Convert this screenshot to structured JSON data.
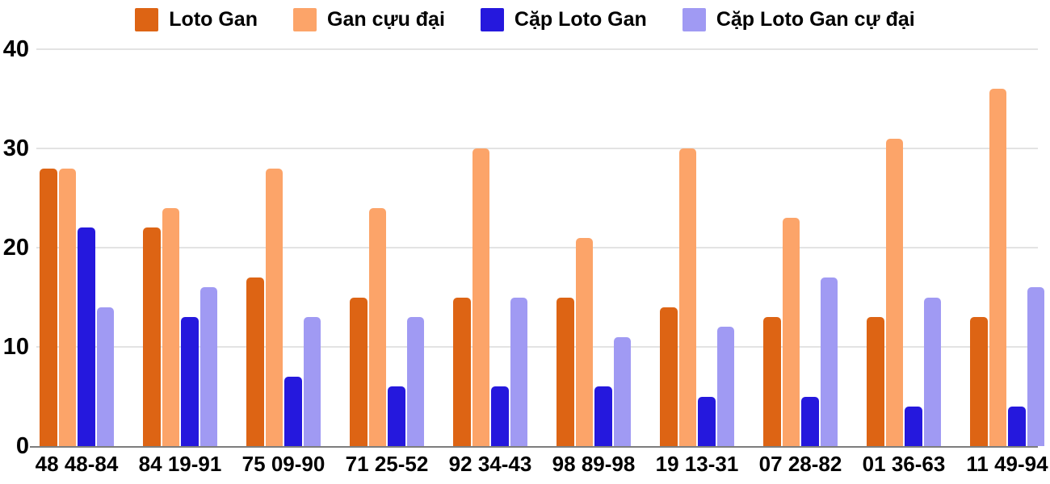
{
  "chart_data": {
    "type": "bar",
    "title": "",
    "xlabel": "",
    "ylabel": "",
    "ylim": [
      0,
      40
    ],
    "yticks": [
      0,
      10,
      20,
      30,
      40
    ],
    "grid": "horizontal",
    "legend_position": "top-center",
    "background_color": "#ffffff",
    "gridline_color": "#e3e3e3",
    "axis_line_color": "#7d7d7d",
    "label_color": "#000000",
    "categories": [
      "48 48-84",
      "84 19-91",
      "75 09-90",
      "71 25-52",
      "92 34-43",
      "98 89-98",
      "19 13-31",
      "07 28-82",
      "01 36-63",
      "11 49-94"
    ],
    "series": [
      {
        "name": "Loto Gan",
        "color": "#dd6414",
        "values": [
          28,
          22,
          17,
          15,
          15,
          15,
          14,
          13,
          13,
          13
        ]
      },
      {
        "name": "Gan cựu đại",
        "color": "#fca469",
        "values": [
          28,
          24,
          28,
          24,
          30,
          21,
          30,
          23,
          31,
          36
        ]
      },
      {
        "name": "Cặp Loto Gan",
        "color": "#2518dd",
        "values": [
          22,
          13,
          7,
          6,
          6,
          6,
          5,
          5,
          4,
          4
        ]
      },
      {
        "name": "Cặp Loto Gan cự đại",
        "color": "#a09af3",
        "values": [
          14,
          16,
          13,
          13,
          15,
          11,
          12,
          17,
          15,
          16
        ]
      }
    ]
  }
}
